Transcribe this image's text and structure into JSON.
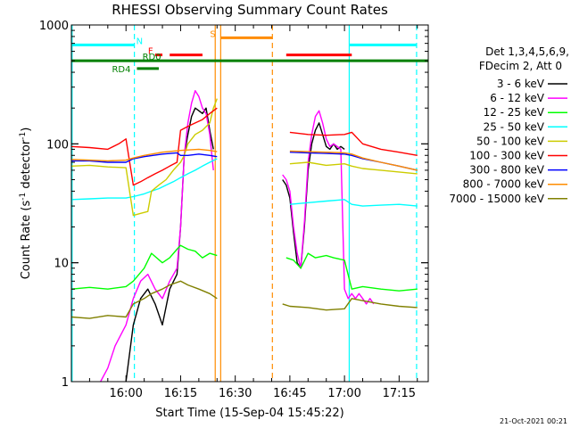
{
  "chart_data": {
    "type": "line",
    "title": "RHESSI Observing Summary Count Rates",
    "xlabel": "Start Time (15-Sep-04 15:45:22)",
    "ylabel_main": "Count Rate (s",
    "ylabel_sup1": "-1",
    "ylabel_mid": " detector",
    "ylabel_sup2": "-1",
    "ylabel_end": ")",
    "footer_date": "21-Oct-2021 00:21",
    "x_axis": {
      "min_minutes": 0,
      "max_minutes": 98,
      "ticks": [
        {
          "m": 15,
          "label": "16:00"
        },
        {
          "m": 30,
          "label": "16:15"
        },
        {
          "m": 45,
          "label": "16:30"
        },
        {
          "m": 60,
          "label": "16:45"
        },
        {
          "m": 75,
          "label": "17:00"
        },
        {
          "m": 90,
          "label": "17:15"
        }
      ]
    },
    "y_axis": {
      "scale": "log",
      "min": 1,
      "max": 1000,
      "ticks": [
        {
          "v": 1,
          "label": "1"
        },
        {
          "v": 10,
          "label": "10"
        },
        {
          "v": 100,
          "label": "100"
        },
        {
          "v": 1000,
          "label": "1000"
        }
      ]
    },
    "legend": {
      "placement": "right",
      "header1": "Det 1,3,4,5,6,9,",
      "header2": "FDecim 2, Att 0"
    },
    "series": [
      {
        "name": "3 - 6 keV",
        "color": "#000000",
        "x": [
          0,
          8,
          15,
          17,
          19,
          21,
          23,
          25,
          27,
          29,
          30,
          31,
          32,
          33,
          34,
          35,
          36,
          37,
          38,
          39,
          40,
          57,
          58,
          59,
          60,
          61,
          62,
          63,
          64,
          65,
          66,
          67,
          68,
          69,
          70,
          71,
          72,
          73,
          74,
          75
        ],
        "y": [
          null,
          null,
          1,
          3,
          5,
          6,
          4.5,
          3,
          6,
          8,
          20,
          80,
          120,
          170,
          200,
          190,
          180,
          200,
          130,
          90,
          null,
          null,
          50,
          45,
          35,
          18,
          10,
          9,
          20,
          60,
          100,
          130,
          150,
          120,
          95,
          90,
          100,
          90,
          95,
          90
        ]
      },
      {
        "name": "6 - 12 keV",
        "color": "#ff00ff",
        "x": [
          0,
          6,
          8,
          10,
          12,
          15,
          17,
          19,
          21,
          23,
          25,
          27,
          29,
          30,
          31,
          32,
          33,
          34,
          35,
          36,
          37,
          38,
          39,
          40,
          57,
          58,
          59,
          60,
          61,
          62,
          63,
          64,
          65,
          66,
          67,
          68,
          69,
          70,
          71,
          72,
          73,
          74,
          75,
          76,
          77,
          78,
          79,
          80,
          81,
          82,
          83
        ],
        "y": [
          null,
          null,
          1,
          1.3,
          2,
          3,
          5,
          7,
          8,
          6,
          5,
          7,
          9,
          20,
          80,
          150,
          220,
          280,
          250,
          200,
          180,
          120,
          60,
          null,
          null,
          55,
          50,
          40,
          20,
          12,
          9,
          22,
          70,
          120,
          170,
          190,
          150,
          110,
          95,
          100,
          95,
          90,
          6,
          5,
          5.5,
          5,
          5.5,
          5,
          4.5,
          5,
          4.5
        ]
      },
      {
        "name": "12 - 25 keV",
        "color": "#00ff00",
        "x": [
          0,
          5,
          10,
          15,
          17,
          20,
          22,
          25,
          27,
          29,
          30,
          32,
          34,
          36,
          38,
          40,
          57,
          59,
          61,
          63,
          65,
          67,
          70,
          72,
          75,
          77,
          80,
          85,
          90,
          95
        ],
        "y": [
          6,
          6.2,
          6,
          6.3,
          7,
          9,
          12,
          10,
          11,
          13,
          14,
          13,
          12.5,
          11,
          12,
          11.5,
          null,
          11,
          10.5,
          9,
          12,
          11,
          11.5,
          11,
          10.5,
          6,
          6.3,
          6,
          5.8,
          6
        ]
      },
      {
        "name": "25 - 50 keV",
        "color": "#00ffff",
        "x": [
          0,
          5,
          10,
          15,
          17,
          20,
          22,
          24,
          26,
          28,
          30,
          32,
          34,
          36,
          38,
          40,
          57,
          60,
          65,
          70,
          75,
          77,
          80,
          85,
          90,
          95
        ],
        "y": [
          34,
          34.5,
          35,
          35,
          36,
          38,
          40,
          42,
          45,
          48,
          52,
          56,
          60,
          65,
          70,
          75,
          null,
          31,
          32,
          33,
          34,
          31,
          30,
          30.5,
          31,
          30
        ]
      },
      {
        "name": "50 - 100 keV",
        "color": "#cccc00",
        "x": [
          0,
          5,
          10,
          15,
          17,
          19,
          21,
          22,
          24,
          26,
          28,
          30,
          31,
          32,
          34,
          36,
          38,
          39,
          40,
          57,
          60,
          65,
          70,
          75,
          77,
          80,
          85,
          90,
          95
        ],
        "y": [
          65,
          66,
          64,
          63,
          25,
          26,
          27,
          40,
          45,
          50,
          60,
          70,
          80,
          100,
          120,
          130,
          150,
          200,
          240,
          null,
          68,
          70,
          66,
          68,
          65,
          62,
          60,
          58,
          56
        ]
      },
      {
        "name": "100 - 300 keV",
        "color": "#ff0000",
        "x": [
          0,
          5,
          10,
          13,
          15,
          17,
          19,
          21,
          23,
          25,
          27,
          29,
          30,
          32,
          34,
          36,
          38,
          39,
          40,
          57,
          60,
          65,
          70,
          75,
          77,
          80,
          85,
          90,
          95
        ],
        "y": [
          95,
          93,
          90,
          100,
          110,
          45,
          48,
          52,
          56,
          60,
          65,
          70,
          130,
          140,
          150,
          160,
          180,
          190,
          200,
          null,
          125,
          120,
          118,
          120,
          125,
          100,
          90,
          85,
          80
        ]
      },
      {
        "name": "300 - 800 keV",
        "color": "#0000ff",
        "x": [
          0,
          5,
          10,
          15,
          17,
          20,
          25,
          29,
          30,
          32,
          35,
          38,
          40,
          57,
          60,
          65,
          70,
          75,
          77,
          80,
          85,
          90,
          95
        ],
        "y": [
          72,
          72,
          70,
          70,
          75,
          78,
          82,
          84,
          80,
          80,
          82,
          80,
          78,
          null,
          85,
          84,
          83,
          82,
          80,
          75,
          70,
          65,
          60
        ]
      },
      {
        "name": "800 - 7000 keV",
        "color": "#ff8c00",
        "x": [
          0,
          5,
          10,
          15,
          17,
          20,
          25,
          30,
          35,
          38,
          40,
          57,
          60,
          65,
          70,
          75,
          77,
          80,
          85,
          90,
          95
        ],
        "y": [
          74,
          73,
          72,
          73,
          76,
          80,
          85,
          88,
          90,
          88,
          86,
          null,
          87,
          86,
          85,
          84,
          82,
          76,
          70,
          65,
          60
        ]
      },
      {
        "name": "7000 - 15000 keV",
        "color": "#808000",
        "x": [
          0,
          5,
          10,
          15,
          17,
          20,
          22,
          25,
          27,
          30,
          32,
          35,
          38,
          40,
          57,
          58,
          60,
          65,
          70,
          75,
          77,
          80,
          85,
          90,
          95
        ],
        "y": [
          3.5,
          3.4,
          3.6,
          3.5,
          4.5,
          5,
          5.5,
          6,
          6.5,
          7,
          6.5,
          6,
          5.5,
          5,
          null,
          4.5,
          4.3,
          4.2,
          4.0,
          4.1,
          5,
          4.8,
          4.5,
          4.3,
          4.2
        ]
      }
    ],
    "vertical_lines": [
      {
        "m": 0.2,
        "color": "#00ffff",
        "style": "solid"
      },
      {
        "m": 17.3,
        "color": "#00ffff",
        "style": "dashed"
      },
      {
        "m": 39.5,
        "color": "#ff8c00",
        "style": "solid"
      },
      {
        "m": 41,
        "color": "#ff8c00",
        "style": "solid"
      },
      {
        "m": 55.2,
        "color": "#ff8c00",
        "style": "dashed"
      },
      {
        "m": 76.3,
        "color": "#00ffff",
        "style": "solid"
      },
      {
        "m": 94.8,
        "color": "#00ffff",
        "style": "dashed"
      }
    ],
    "flag_bars": [
      {
        "label": "N",
        "color": "#00ffff",
        "y": 680,
        "segments": [
          [
            0,
            17.3
          ],
          [
            76.3,
            94.8
          ]
        ]
      },
      {
        "label": "S",
        "color": "#ff8c00",
        "y": 780,
        "segments": [
          [
            41,
            55.2
          ]
        ]
      },
      {
        "label": "F",
        "color": "#ff0000",
        "y": 560,
        "segments": [
          [
            23,
            25
          ],
          [
            27,
            36
          ],
          [
            59,
            77
          ]
        ]
      },
      {
        "label": "RD0",
        "color": "#008000",
        "y": 500,
        "segments": [
          [
            0,
            98
          ]
        ]
      },
      {
        "label": "RD4",
        "color": "#008000",
        "y": 430,
        "segments": [
          [
            18,
            24
          ]
        ]
      }
    ]
  }
}
